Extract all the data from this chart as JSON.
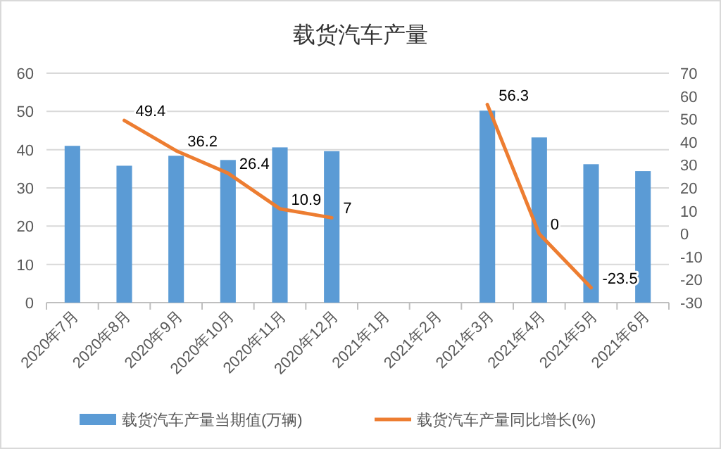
{
  "chart_data": {
    "type": "bar",
    "title": "载货汽车产量",
    "categories": [
      "2020年7月",
      "2020年8月",
      "2020年9月",
      "2020年10月",
      "2020年11月",
      "2020年12月",
      "2021年1月",
      "2021年2月",
      "2021年3月",
      "2021年4月",
      "2021年5月",
      "2021年6月"
    ],
    "series": [
      {
        "name": "载货汽车产量当期值(万辆)",
        "color": "#5b9bd5",
        "values": [
          41.0,
          35.8,
          38.4,
          37.3,
          40.6,
          39.6,
          null,
          null,
          50.2,
          43.2,
          36.2,
          34.4
        ]
      },
      {
        "name": "载货汽车产量同比增长(%)",
        "type": "line",
        "axis": "y2",
        "color": "#ed7d31",
        "values": [
          null,
          49.4,
          36.2,
          26.4,
          10.9,
          7,
          null,
          null,
          56.3,
          0,
          -23.5,
          null
        ],
        "value_labels": [
          null,
          "49.4",
          "36.2",
          "26.4",
          "10.9",
          "7",
          null,
          null,
          "56.3",
          "0",
          "-23.5",
          null
        ]
      }
    ],
    "ylim": [
      0,
      60
    ],
    "yticks": [
      0,
      10,
      20,
      30,
      40,
      50,
      60
    ],
    "y2lim": [
      -30,
      70
    ],
    "y2ticks": [
      -30,
      -20,
      -10,
      0,
      10,
      20,
      30,
      40,
      50,
      60,
      70
    ],
    "grid": "y",
    "legend": "bottom",
    "marker": "none",
    "line_style": "solid"
  }
}
